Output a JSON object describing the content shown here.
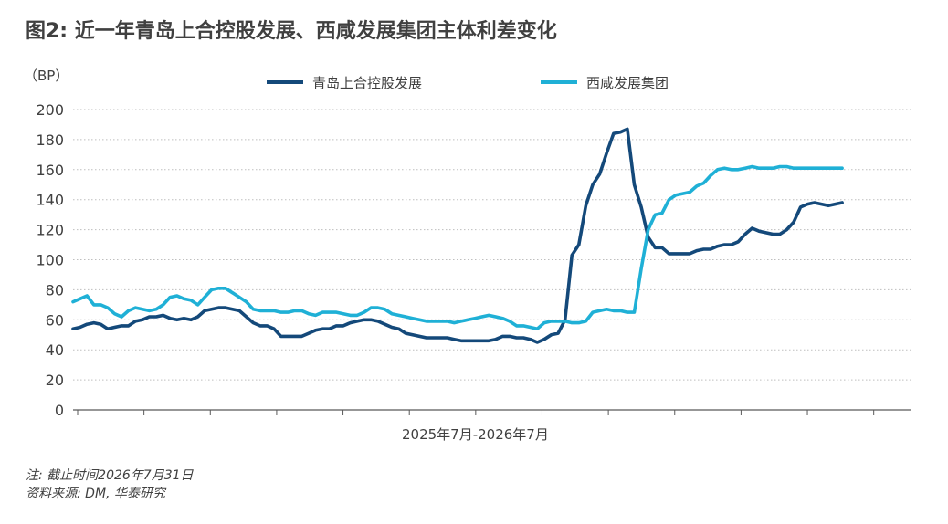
{
  "figure": {
    "title": "图2: 近一年青岛上合控股发展、西咸发展集团主体利差变化",
    "unit_label": "（BP）",
    "note": "注: 截止时间2026年7月31日",
    "source": "资料来源: DM, 华泰研究"
  },
  "colors": {
    "qingdao": "#14497a",
    "xixian": "#1fb0d6",
    "grid": "#bfbfbf",
    "axis": "#595959"
  },
  "chart_data": {
    "type": "line",
    "title": "图2: 近一年青岛上合控股发展、西咸发展集团主体利差变化",
    "xlabel": "2025年7月-2026年7月",
    "ylabel": "（BP）",
    "ylim": [
      0,
      200
    ],
    "yticks": [
      0,
      20,
      40,
      60,
      80,
      100,
      120,
      140,
      160,
      180,
      200
    ],
    "grid": "horizontal dotted",
    "legend_position": "top",
    "x": [
      0,
      3,
      6,
      9,
      12,
      15,
      18,
      21,
      24,
      27,
      30,
      33,
      36,
      39,
      42,
      45,
      48,
      51,
      54,
      57,
      60,
      63,
      66,
      69,
      72,
      75,
      78,
      81,
      84,
      87,
      90,
      93,
      96,
      99,
      102,
      105,
      108,
      111,
      114,
      117,
      120,
      123,
      126,
      129,
      132,
      135,
      138,
      141,
      144,
      147,
      150,
      153,
      156,
      159,
      162,
      165,
      168,
      171,
      174,
      177,
      180,
      183,
      186,
      189,
      192,
      195,
      198,
      201,
      204,
      207,
      210,
      213,
      216,
      219,
      222,
      225,
      228,
      231,
      234,
      237,
      240,
      243,
      246,
      249,
      252,
      255,
      258,
      261,
      264,
      267,
      270,
      273,
      276,
      279,
      282,
      285,
      288,
      291,
      294,
      297,
      300,
      303,
      306,
      309,
      312,
      315,
      318,
      321,
      324,
      327,
      330,
      333,
      336,
      339,
      342,
      345,
      348,
      351,
      354,
      357,
      360,
      363
    ],
    "series": [
      {
        "name": "青岛上合控股发展",
        "color_key": "qingdao",
        "values": [
          54,
          55,
          57,
          58,
          57,
          54,
          55,
          56,
          56,
          59,
          60,
          62,
          62,
          63,
          61,
          60,
          61,
          60,
          62,
          66,
          67,
          68,
          68,
          67,
          66,
          62,
          58,
          56,
          56,
          54,
          49,
          49,
          49,
          49,
          51,
          53,
          54,
          54,
          56,
          56,
          58,
          59,
          60,
          60,
          59,
          57,
          55,
          54,
          51,
          50,
          49,
          48,
          48,
          48,
          48,
          47,
          46,
          46,
          46,
          46,
          46,
          47,
          49,
          49,
          48,
          48,
          47,
          45,
          47,
          50,
          51,
          60,
          103,
          110,
          136,
          150,
          157,
          171,
          184,
          185,
          187,
          150,
          135,
          115,
          108,
          108,
          104,
          104,
          104,
          104,
          106,
          107,
          107,
          109,
          110,
          110,
          112,
          117,
          121,
          119,
          118,
          117,
          117,
          120,
          125,
          135,
          137,
          138,
          137,
          136,
          137,
          138,
          139,
          138,
          138,
          138,
          138,
          136,
          136,
          136,
          136,
          136
        ],
        "plotted_through_x": 333
      },
      {
        "name": "西咸发展集团",
        "color_key": "xixian",
        "values": [
          72,
          74,
          76,
          70,
          70,
          68,
          64,
          62,
          66,
          68,
          67,
          66,
          67,
          70,
          75,
          76,
          74,
          73,
          70,
          75,
          80,
          81,
          81,
          78,
          75,
          72,
          67,
          66,
          66,
          66,
          65,
          65,
          66,
          66,
          64,
          63,
          65,
          65,
          65,
          64,
          63,
          63,
          65,
          68,
          68,
          67,
          64,
          63,
          62,
          61,
          60,
          59,
          59,
          59,
          59,
          58,
          59,
          60,
          61,
          62,
          63,
          62,
          61,
          59,
          56,
          56,
          55,
          54,
          58,
          59,
          59,
          59,
          58,
          58,
          59,
          65,
          66,
          67,
          66,
          66,
          65,
          65,
          94,
          120,
          130,
          131,
          140,
          143,
          144,
          145,
          149,
          151,
          156,
          160,
          161,
          160,
          160,
          161,
          162,
          161,
          161,
          161,
          162,
          162,
          161,
          161,
          161,
          161,
          161,
          161,
          161,
          161,
          161,
          161,
          161,
          161,
          161,
          161,
          161,
          161,
          161,
          161
        ],
        "plotted_through_x": 333
      }
    ]
  }
}
